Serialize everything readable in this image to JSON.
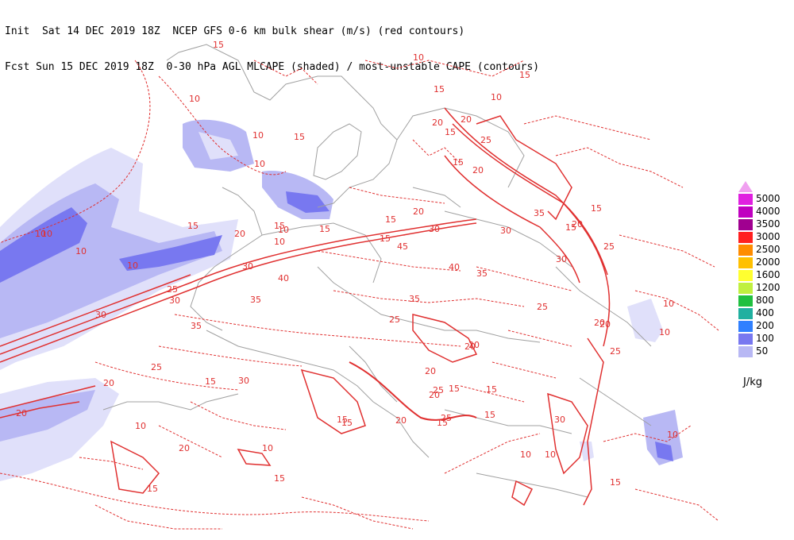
{
  "header": {
    "line1": "Init  Sat 14 DEC 2019 18Z  NCEP GFS 0-6 km bulk shear (m/s) (red contours)",
    "line2": "Fcst Sun 15 DEC 2019 18Z  0-30 hPa AGL MLCAPE (shaded) / most-unstable CAPE (contours)"
  },
  "legend": {
    "units": "J/kg",
    "levels": [
      {
        "label": "5000",
        "color": "#e020e0"
      },
      {
        "label": "4000",
        "color": "#c000c0"
      },
      {
        "label": "3500",
        "color": "#a00090"
      },
      {
        "label": "3000",
        "color": "#ff2020"
      },
      {
        "label": "2500",
        "color": "#ff8c00"
      },
      {
        "label": "2000",
        "color": "#ffc000"
      },
      {
        "label": "1600",
        "color": "#ffff30"
      },
      {
        "label": "1200",
        "color": "#c0f040"
      },
      {
        "label": "800",
        "color": "#20c040"
      },
      {
        "label": "400",
        "color": "#20b0a0"
      },
      {
        "label": "200",
        "color": "#3080ff"
      },
      {
        "label": "100",
        "color": "#7878f0"
      },
      {
        "label": "50",
        "color": "#b8b8f4"
      }
    ],
    "lowest_fill": "#e0e0fa",
    "extend_color": "#f0a0f0"
  },
  "map": {
    "shear_labels": [
      "15",
      "10",
      "10",
      "15",
      "10",
      "15",
      "10",
      "20",
      "10",
      "15",
      "10",
      "25",
      "10",
      "15",
      "20",
      "15",
      "15",
      "15",
      "20",
      "15",
      "25",
      "20",
      "35",
      "30",
      "45",
      "40",
      "35",
      "30",
      "35",
      "40",
      "25",
      "25",
      "20",
      "15",
      "10",
      "20",
      "20",
      "25",
      "30",
      "10",
      "30",
      "35",
      "30",
      "25",
      "20",
      "15",
      "20",
      "20",
      "25",
      "10",
      "15",
      "15",
      "15",
      "10",
      "20",
      "10",
      "20",
      "20",
      "15",
      "15",
      "10",
      "15",
      "10",
      "15",
      "10",
      "15",
      "30",
      "25",
      "35",
      "10",
      "20",
      "15",
      "15",
      "25",
      "30",
      "20",
      "20",
      "30",
      "10",
      "15",
      "10",
      "15"
    ],
    "contour_color": "#e03030",
    "coast_color": "#a0a0a0"
  }
}
